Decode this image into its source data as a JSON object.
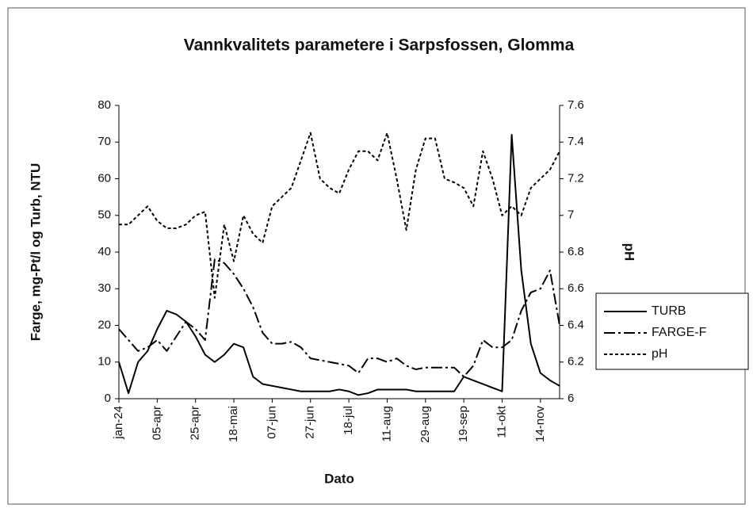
{
  "chart_data": {
    "type": "line",
    "title": "Vannkvalitets parametere i Sarpsfossen, Glomma",
    "x_label": "Dato",
    "y_label": "Farge, mg-Pt/l og Turb, NTU",
    "y2_label": "pH",
    "categories": [
      "jan-24",
      null,
      null,
      null,
      "05-apr",
      null,
      null,
      null,
      "25-apr",
      null,
      null,
      null,
      "18-mai",
      null,
      null,
      null,
      "07-jun",
      null,
      null,
      null,
      "27-jun",
      null,
      null,
      null,
      "18-jul",
      null,
      null,
      null,
      "11-aug",
      null,
      null,
      null,
      "29-aug",
      null,
      null,
      null,
      "19-sep",
      null,
      null,
      null,
      "11-okt",
      null,
      null,
      null,
      "14-nov",
      null,
      null
    ],
    "ylim": [
      0,
      80
    ],
    "yticks": [
      0,
      10,
      20,
      30,
      40,
      50,
      60,
      70,
      80
    ],
    "y2lim": [
      6,
      7.6
    ],
    "y2ticks": [
      6,
      6.2,
      6.4,
      6.6,
      6.8,
      7,
      7.2,
      7.4,
      7.6
    ],
    "legend": "right",
    "series": [
      {
        "name": "TURB",
        "color": "#000000",
        "style": "solid",
        "values": [
          10,
          1.5,
          10,
          13,
          19,
          24,
          23,
          21,
          17,
          12,
          10,
          12,
          15,
          14,
          6,
          4,
          3.5,
          3,
          2.5,
          2,
          2,
          2,
          2,
          2.5,
          2,
          1,
          1.5,
          2.5,
          2.5,
          2.5,
          2.5,
          2,
          2,
          2,
          2,
          2,
          6,
          5,
          4,
          3,
          2,
          72,
          35,
          15,
          7,
          5,
          3.5
        ]
      },
      {
        "name": "FARGE-F",
        "color": "#000000",
        "style": "dashdot",
        "values": [
          19,
          16,
          13,
          14,
          16,
          13,
          17,
          21,
          19,
          16,
          38,
          37,
          34,
          30,
          25,
          18,
          15,
          15,
          15.5,
          14,
          11,
          10.5,
          10,
          9.5,
          9,
          7,
          11,
          11,
          10,
          11,
          9,
          8,
          8.5,
          8.5,
          8.5,
          8.5,
          6,
          9,
          16,
          14,
          14,
          16,
          24,
          29,
          30,
          35,
          20
        ]
      },
      {
        "name": "pH",
        "color": "#000000",
        "style": "dotted",
        "axis": "y2",
        "values": [
          6.95,
          6.95,
          7.0,
          7.05,
          6.97,
          6.93,
          6.93,
          6.95,
          7.0,
          7.02,
          6.55,
          6.95,
          6.75,
          7.0,
          6.9,
          6.85,
          7.05,
          7.1,
          7.15,
          7.3,
          7.45,
          7.2,
          7.15,
          7.12,
          7.25,
          7.35,
          7.35,
          7.3,
          7.45,
          7.2,
          6.92,
          7.25,
          7.42,
          7.42,
          7.2,
          7.18,
          7.15,
          7.05,
          7.35,
          7.2,
          7.0,
          7.05,
          7.0,
          7.15,
          7.2,
          7.25,
          7.35
        ]
      }
    ]
  }
}
